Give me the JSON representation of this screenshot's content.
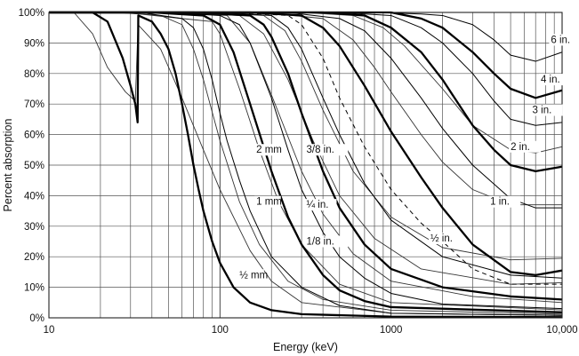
{
  "chart_data": {
    "type": "line",
    "title": "",
    "xlabel": "Energy (keV)",
    "ylabel": "Percent absorption",
    "xscale": "log",
    "xlim": [
      10,
      10000
    ],
    "ylim": [
      0,
      100
    ],
    "grid": true,
    "legend": "none (curves labelled directly)",
    "x_tick_labels": [
      "10",
      "100",
      "1000",
      "10,000"
    ],
    "y_tick_labels": [
      "0%",
      "10%",
      "20%",
      "30%",
      "40%",
      "50%",
      "60%",
      "70%",
      "80%",
      "90%",
      "100%"
    ],
    "series": [
      {
        "name": "½ mm",
        "weight": "bold",
        "dash": false,
        "points": [
          [
            10,
            100
          ],
          [
            18,
            100
          ],
          [
            22,
            97
          ],
          [
            27,
            85
          ],
          [
            30,
            76
          ],
          [
            32,
            70
          ],
          [
            33,
            64
          ],
          [
            33.3,
            99
          ],
          [
            40,
            97
          ],
          [
            45,
            93
          ],
          [
            50,
            88
          ],
          [
            55,
            80
          ],
          [
            60,
            70
          ],
          [
            65,
            60
          ],
          [
            70,
            50
          ],
          [
            75,
            42
          ],
          [
            80,
            35
          ],
          [
            90,
            25
          ],
          [
            100,
            18
          ],
          [
            120,
            10
          ],
          [
            150,
            5
          ],
          [
            200,
            2.5
          ],
          [
            300,
            1.2
          ],
          [
            1000,
            0.4
          ],
          [
            10000,
            0.2
          ]
        ],
        "label_at": [
          130,
          13
        ]
      },
      {
        "name": "1 mm",
        "weight": "normal",
        "dash": false,
        "points": [
          [
            10,
            100
          ],
          [
            34,
            100
          ],
          [
            60,
            98
          ],
          [
            70,
            95
          ],
          [
            80,
            88
          ],
          [
            90,
            78
          ],
          [
            100,
            67
          ],
          [
            110,
            58
          ],
          [
            130,
            45
          ],
          [
            150,
            35
          ],
          [
            200,
            20
          ],
          [
            300,
            10
          ],
          [
            500,
            4
          ],
          [
            1000,
            1.5
          ],
          [
            10000,
            0.8
          ]
        ],
        "label_at": [
          163,
          37
        ]
      },
      {
        "name": "2 mm",
        "weight": "bold",
        "dash": false,
        "points": [
          [
            10,
            100
          ],
          [
            40,
            100
          ],
          [
            80,
            99
          ],
          [
            100,
            96
          ],
          [
            120,
            87
          ],
          [
            150,
            70
          ],
          [
            200,
            48
          ],
          [
            250,
            33
          ],
          [
            300,
            24
          ],
          [
            400,
            14
          ],
          [
            500,
            9
          ],
          [
            700,
            5.5
          ],
          [
            1000,
            3.5
          ],
          [
            10000,
            1.8
          ]
        ],
        "label_at": [
          163,
          54
        ]
      },
      {
        "name": "1/8 in.",
        "weight": "normal",
        "dash": false,
        "points": [
          [
            10,
            100
          ],
          [
            50,
            100
          ],
          [
            100,
            99
          ],
          [
            130,
            96
          ],
          [
            150,
            90
          ],
          [
            200,
            72
          ],
          [
            250,
            55
          ],
          [
            300,
            42
          ],
          [
            400,
            28
          ],
          [
            500,
            20
          ],
          [
            700,
            13
          ],
          [
            1000,
            8
          ],
          [
            2000,
            4.5
          ],
          [
            10000,
            3
          ]
        ],
        "label_at": [
          320,
          24
        ]
      },
      {
        "name": "¼ in.",
        "weight": "bold",
        "dash": false,
        "points": [
          [
            10,
            100
          ],
          [
            70,
            100
          ],
          [
            150,
            99
          ],
          [
            180,
            96
          ],
          [
            200,
            92
          ],
          [
            250,
            80
          ],
          [
            300,
            67
          ],
          [
            400,
            48
          ],
          [
            500,
            36
          ],
          [
            700,
            24
          ],
          [
            1000,
            16
          ],
          [
            2000,
            10
          ],
          [
            5000,
            7
          ],
          [
            10000,
            6
          ]
        ],
        "label_at": [
          320,
          36
        ]
      },
      {
        "name": "3/8 in.",
        "weight": "normal",
        "dash": false,
        "points": [
          [
            10,
            100
          ],
          [
            100,
            100
          ],
          [
            200,
            99
          ],
          [
            250,
            95
          ],
          [
            300,
            88
          ],
          [
            400,
            72
          ],
          [
            500,
            60
          ],
          [
            700,
            44
          ],
          [
            1000,
            32
          ],
          [
            2000,
            20
          ],
          [
            5000,
            14
          ],
          [
            10000,
            13
          ]
        ],
        "label_at": [
          320,
          54
        ]
      },
      {
        "name": "",
        "weight": "normal",
        "dash": true,
        "points": [
          [
            10,
            100
          ],
          [
            120,
            100
          ],
          [
            250,
            99
          ],
          [
            300,
            96
          ],
          [
            400,
            85
          ],
          [
            500,
            72
          ],
          [
            700,
            56
          ],
          [
            1000,
            42
          ],
          [
            1500,
            31
          ],
          [
            2000,
            25
          ],
          [
            3000,
            16
          ],
          [
            5000,
            11
          ],
          [
            10000,
            11
          ]
        ],
        "label_at": null
      },
      {
        "name": "½ in.",
        "weight": "bold",
        "dash": false,
        "points": [
          [
            10,
            100
          ],
          [
            150,
            100
          ],
          [
            300,
            99
          ],
          [
            400,
            95
          ],
          [
            500,
            89
          ],
          [
            700,
            76
          ],
          [
            1000,
            61
          ],
          [
            1500,
            46
          ],
          [
            2000,
            36
          ],
          [
            3000,
            24
          ],
          [
            5000,
            15
          ],
          [
            7000,
            14
          ],
          [
            10000,
            15.5
          ]
        ],
        "label_at": [
          1700,
          25
        ]
      },
      {
        "name": "1 in.",
        "weight": "normal",
        "dash": false,
        "points": [
          [
            10,
            100
          ],
          [
            250,
            100
          ],
          [
            500,
            98
          ],
          [
            700,
            94
          ],
          [
            1000,
            85
          ],
          [
            1500,
            72
          ],
          [
            2000,
            62
          ],
          [
            3000,
            50
          ],
          [
            5000,
            39
          ],
          [
            7000,
            36
          ],
          [
            10000,
            36
          ]
        ],
        "label_at": [
          3800,
          37
        ]
      },
      {
        "name": "2 in.",
        "weight": "bold",
        "dash": false,
        "points": [
          [
            10,
            100
          ],
          [
            400,
            100
          ],
          [
            700,
            99
          ],
          [
            1000,
            95
          ],
          [
            1500,
            87
          ],
          [
            2000,
            78
          ],
          [
            3000,
            63
          ],
          [
            4000,
            55
          ],
          [
            5000,
            50
          ],
          [
            7000,
            48
          ],
          [
            10000,
            49.5
          ]
        ],
        "label_at": [
          5000,
          55
        ]
      },
      {
        "name": "3 in.",
        "weight": "normal",
        "dash": false,
        "points": [
          [
            10,
            100
          ],
          [
            500,
            100
          ],
          [
            1000,
            99
          ],
          [
            1500,
            95
          ],
          [
            2000,
            90
          ],
          [
            3000,
            80
          ],
          [
            4000,
            71
          ],
          [
            5000,
            65
          ],
          [
            7000,
            63
          ],
          [
            10000,
            64
          ]
        ],
        "label_at": [
          6700,
          67
        ]
      },
      {
        "name": "4 in.",
        "weight": "bold",
        "dash": false,
        "points": [
          [
            10,
            100
          ],
          [
            600,
            100
          ],
          [
            1000,
            100
          ],
          [
            1500,
            98
          ],
          [
            2000,
            95
          ],
          [
            3000,
            87
          ],
          [
            4000,
            80
          ],
          [
            5000,
            75
          ],
          [
            7000,
            72
          ],
          [
            10000,
            74.5
          ]
        ],
        "label_at": [
          7500,
          77
        ]
      },
      {
        "name": "6 in.",
        "weight": "normal",
        "dash": false,
        "points": [
          [
            10,
            100
          ],
          [
            800,
            100
          ],
          [
            1500,
            99.5
          ],
          [
            2000,
            99
          ],
          [
            3000,
            96
          ],
          [
            4000,
            91
          ],
          [
            5000,
            86
          ],
          [
            7000,
            84
          ],
          [
            10000,
            87
          ]
        ],
        "label_at": [
          8600,
          90
        ]
      }
    ],
    "minor_curves": [
      [
        [
          10,
          100
        ],
        [
          14,
          100
        ],
        [
          18,
          93
        ],
        [
          22,
          82
        ],
        [
          28,
          74
        ],
        [
          32,
          71
        ],
        [
          33.2,
          96
        ],
        [
          45,
          88
        ],
        [
          60,
          72
        ],
        [
          80,
          55
        ],
        [
          100,
          42
        ],
        [
          150,
          22
        ],
        [
          200,
          12
        ],
        [
          300,
          5
        ],
        [
          1000,
          1.5
        ],
        [
          10000,
          0.8
        ]
      ],
      [
        [
          10,
          100
        ],
        [
          25,
          100
        ],
        [
          45,
          99
        ],
        [
          60,
          96
        ],
        [
          70,
          88
        ],
        [
          80,
          78
        ],
        [
          100,
          58
        ],
        [
          130,
          38
        ],
        [
          170,
          24
        ],
        [
          250,
          12
        ],
        [
          400,
          6
        ],
        [
          1000,
          2.5
        ],
        [
          10000,
          1.2
        ]
      ],
      [
        [
          10,
          100
        ],
        [
          28,
          100
        ],
        [
          60,
          98
        ],
        [
          90,
          97
        ],
        [
          100,
          93
        ],
        [
          130,
          75
        ],
        [
          170,
          55
        ],
        [
          220,
          38
        ],
        [
          300,
          24
        ],
        [
          500,
          11
        ],
        [
          1000,
          5
        ],
        [
          10000,
          2.6
        ]
      ],
      [
        [
          10,
          100
        ],
        [
          45,
          100
        ],
        [
          110,
          99
        ],
        [
          150,
          90
        ],
        [
          200,
          73
        ],
        [
          300,
          48
        ],
        [
          400,
          34
        ],
        [
          600,
          21
        ],
        [
          1000,
          12
        ],
        [
          3000,
          7
        ],
        [
          10000,
          5
        ]
      ],
      [
        [
          10,
          100
        ],
        [
          50,
          100
        ],
        [
          130,
          99
        ],
        [
          180,
          93
        ],
        [
          250,
          78
        ],
        [
          350,
          58
        ],
        [
          500,
          40
        ],
        [
          800,
          26
        ],
        [
          1500,
          16
        ],
        [
          5000,
          11
        ],
        [
          10000,
          11.5
        ]
      ],
      [
        [
          10,
          100
        ],
        [
          80,
          100
        ],
        [
          180,
          99
        ],
        [
          240,
          94
        ],
        [
          300,
          84
        ],
        [
          400,
          68
        ],
        [
          600,
          48
        ],
        [
          1000,
          33
        ],
        [
          2000,
          23
        ],
        [
          5000,
          19
        ],
        [
          10000,
          19.5
        ]
      ],
      [
        [
          10,
          100
        ],
        [
          180,
          100
        ],
        [
          400,
          98
        ],
        [
          600,
          91
        ],
        [
          800,
          82
        ],
        [
          1000,
          74
        ],
        [
          1500,
          60
        ],
        [
          2000,
          51
        ],
        [
          3000,
          42
        ],
        [
          5000,
          37
        ],
        [
          10000,
          37
        ]
      ],
      [
        [
          10,
          100
        ],
        [
          300,
          100
        ],
        [
          600,
          99
        ],
        [
          900,
          95
        ],
        [
          1200,
          89
        ],
        [
          2000,
          75
        ],
        [
          3000,
          63
        ],
        [
          5000,
          55
        ],
        [
          7000,
          54
        ],
        [
          10000,
          56
        ]
      ]
    ]
  }
}
